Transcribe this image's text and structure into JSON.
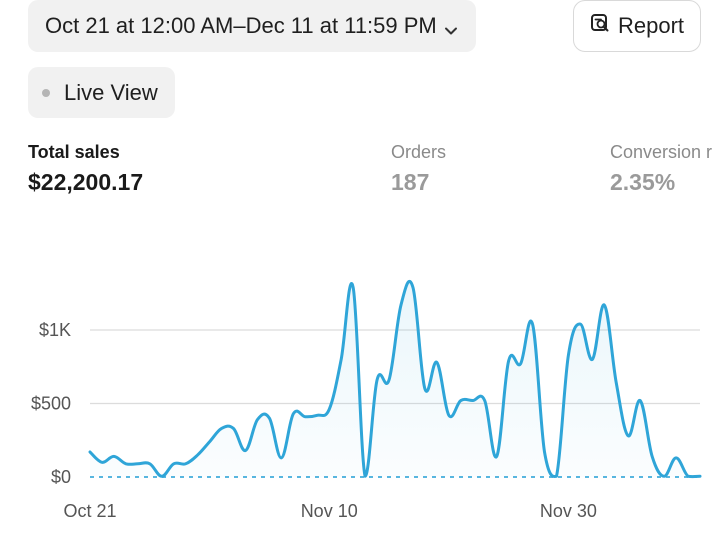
{
  "header": {
    "date_range_label": "Oct 21 at 12:00 AM–Dec 11 at 11:59 PM",
    "report_label": "Report",
    "live_view_label": "Live View"
  },
  "metrics": [
    {
      "label": "Total sales",
      "value": "$22,200.17"
    },
    {
      "label": "Orders",
      "value": "187"
    },
    {
      "label": "Conversion r",
      "value": "2.35%"
    }
  ],
  "colors": {
    "accent": "#2fa5d8",
    "text": "#1a1a1a",
    "muted": "#9a9a9a",
    "chip_bg": "#f1f1f1"
  },
  "chart_data": {
    "type": "line",
    "title": "",
    "xlabel": "",
    "ylabel": "",
    "y_ticks": [
      "$0",
      "$500",
      "$1K"
    ],
    "x_ticks": [
      "Oct 21",
      "Nov 10",
      "Nov 30"
    ],
    "ylim": [
      0,
      1350
    ],
    "grid": true,
    "series": [
      {
        "values": [
          170,
          100,
          140,
          90,
          90,
          90,
          5,
          90,
          90,
          150,
          240,
          330,
          330,
          180,
          390,
          400,
          130,
          430,
          410,
          420,
          460,
          800,
          1290,
          5,
          660,
          660,
          1170,
          1290,
          600,
          780,
          420,
          520,
          520,
          520,
          140,
          790,
          770,
          1040,
          170,
          5,
          830,
          1040,
          800,
          1170,
          640,
          280,
          520,
          140,
          5,
          130,
          5,
          5
        ]
      }
    ],
    "baseline_values": [
      0,
      0
    ]
  }
}
